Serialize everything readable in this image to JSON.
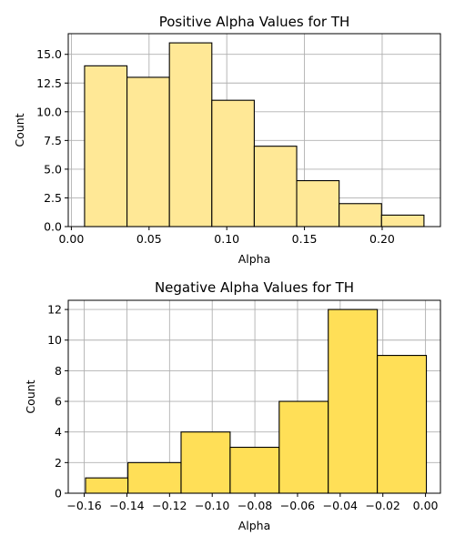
{
  "chart_data": [
    {
      "type": "bar",
      "title": "Positive Alpha Values for TH",
      "xlabel": "Alpha",
      "ylabel": "Count",
      "bar_color": "#FFE896",
      "bins": [
        {
          "x0": 0.0085,
          "x1": 0.0358,
          "count": 14
        },
        {
          "x0": 0.0358,
          "x1": 0.0631,
          "count": 13
        },
        {
          "x0": 0.0631,
          "x1": 0.0904,
          "count": 16
        },
        {
          "x0": 0.0904,
          "x1": 0.1177,
          "count": 11
        },
        {
          "x0": 0.1177,
          "x1": 0.145,
          "count": 7
        },
        {
          "x0": 0.145,
          "x1": 0.1723,
          "count": 4
        },
        {
          "x0": 0.1723,
          "x1": 0.1996,
          "count": 2
        },
        {
          "x0": 0.1996,
          "x1": 0.2269,
          "count": 1
        }
      ],
      "xlim": [
        -0.002,
        0.2375
      ],
      "ylim": [
        0,
        16.8
      ],
      "xticks": [
        0.0,
        0.05,
        0.1,
        0.15,
        0.2
      ],
      "xtick_labels": [
        "0.00",
        "0.05",
        "0.10",
        "0.15",
        "0.20"
      ],
      "yticks": [
        0,
        2.5,
        5,
        7.5,
        10,
        12.5,
        15
      ],
      "ytick_labels": [
        "0.0",
        "2.5",
        "5.0",
        "7.5",
        "10.0",
        "12.5",
        "15.0"
      ],
      "grid": true
    },
    {
      "type": "bar",
      "title": "Negative Alpha Values for TH",
      "xlabel": "Alpha",
      "ylabel": "Count",
      "bar_color": "#FFDF57",
      "bins": [
        {
          "x0": -0.1594,
          "x1": -0.1395,
          "count": 1
        },
        {
          "x0": -0.1395,
          "x1": -0.1146,
          "count": 2
        },
        {
          "x0": -0.1146,
          "x1": -0.0916,
          "count": 4
        },
        {
          "x0": -0.0916,
          "x1": -0.0686,
          "count": 3
        },
        {
          "x0": -0.0686,
          "x1": -0.0456,
          "count": 6
        },
        {
          "x0": -0.0456,
          "x1": -0.0226,
          "count": 12
        },
        {
          "x0": -0.0226,
          "x1": 0.0004,
          "count": 9
        }
      ],
      "xlim": [
        -0.1675,
        0.007
      ],
      "ylim": [
        0,
        12.6
      ],
      "xticks": [
        -0.16,
        -0.14,
        -0.12,
        -0.1,
        -0.08,
        -0.06,
        -0.04,
        -0.02,
        0.0
      ],
      "xtick_labels": [
        "−0.16",
        "−0.14",
        "−0.12",
        "−0.10",
        "−0.08",
        "−0.06",
        "−0.04",
        "−0.02",
        "0.00"
      ],
      "yticks": [
        0,
        2,
        4,
        6,
        8,
        10,
        12
      ],
      "ytick_labels": [
        "0",
        "2",
        "4",
        "6",
        "8",
        "10",
        "12"
      ],
      "grid": true
    }
  ]
}
